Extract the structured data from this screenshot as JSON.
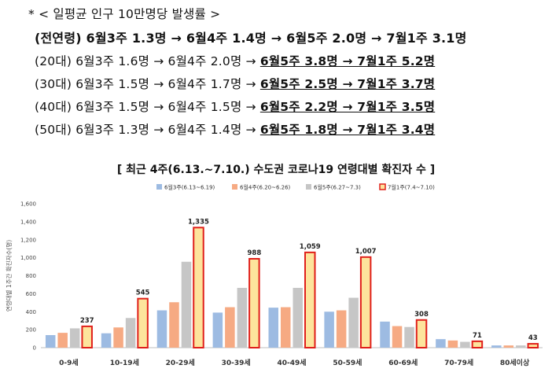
{
  "notes": {
    "heading": "* < 일평균 인구 10만명당 발생률 >",
    "all_ages": {
      "prefix": "(전연령) 6월3주 1.3명 → 6월4주 1.4명 → 6월5주 2.0명 → 7월1주 3.1명"
    },
    "rows": [
      {
        "group": "(20대)",
        "plain": " 6월3주 1.6명 → 6월4주 2.0명  → ",
        "underlined": "6월5주 3.8명 → 7월1주 5.2명"
      },
      {
        "group": "(30대)",
        "plain": " 6월3주 1.5명 → 6월4주 1.7명 → ",
        "underlined": "6월5주 2.5명 → 7월1주 3.7명"
      },
      {
        "group": "(40대)",
        "plain": " 6월3주 1.5명 → 6월4주 1.5명 → ",
        "underlined": "6월5주 2.2명 → 7월1주 3.5명"
      },
      {
        "group": "(50대)",
        "plain": " 6월3주 1.3명 → 6월4주 1.4명 → ",
        "underlined": "6월5주 1.8명 → 7월1주 3.4명"
      }
    ]
  },
  "chart_data": {
    "type": "bar",
    "title": "[ 최근 4주(6.13.~7.10.) 수도권 코로나19 연령대별 확진자 수 ]",
    "ylabel": "연령대별 1주간 확진자수(명)",
    "ylim": [
      0,
      1600
    ],
    "yticks": [
      0,
      200,
      400,
      600,
      800,
      1000,
      1200,
      1400,
      1600
    ],
    "ytick_labels": [
      "0",
      "200",
      "400",
      "600",
      "800",
      "1,000",
      "1,200",
      "1,400",
      "1,600"
    ],
    "categories": [
      "0-9세",
      "10-19세",
      "20-29세",
      "30-39세",
      "40-49세",
      "50-59세",
      "60-69세",
      "70-79세",
      "80세이상"
    ],
    "series": [
      {
        "name": "6월3주(6.13~6.19)",
        "color": "#9dbbe2",
        "values": [
          140,
          160,
          415,
          390,
          445,
          400,
          290,
          95,
          25
        ]
      },
      {
        "name": "6월4주(6.20~6.26)",
        "color": "#f6aa83",
        "values": [
          165,
          225,
          505,
          450,
          450,
          415,
          240,
          80,
          25
        ]
      },
      {
        "name": "6월5주(6.27~7.3)",
        "color": "#c6c6c6",
        "values": [
          215,
          330,
          955,
          665,
          665,
          555,
          230,
          65,
          25
        ]
      },
      {
        "name": "7월1주(7.4~7.10)",
        "color": "#fde49c",
        "edge": "#e0201b",
        "values": [
          237,
          545,
          1335,
          988,
          1059,
          1007,
          308,
          71,
          43
        ],
        "labels": [
          "237",
          "545",
          "1,335",
          "988",
          "1,059",
          "1,007",
          "308",
          "71",
          "43"
        ]
      }
    ],
    "legend_position": "top",
    "grid": false
  }
}
